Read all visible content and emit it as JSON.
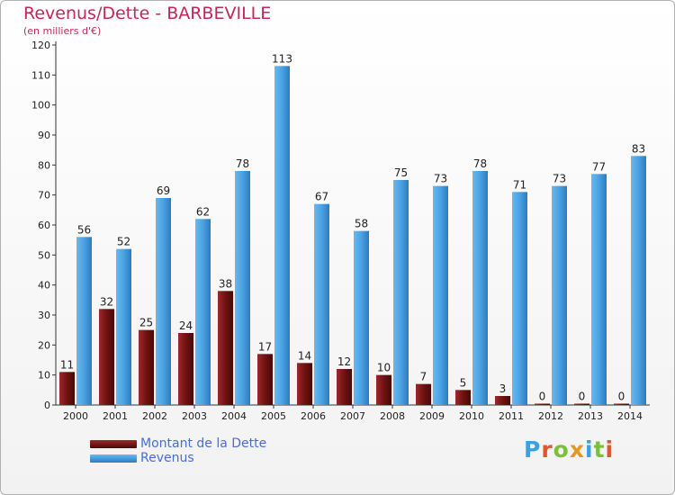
{
  "title": "Revenus/Dette - BARBEVILLE",
  "subtitle": "(en milliers d'€)",
  "brand": "Proxiti",
  "brand_colors": [
    "#3aa0e0",
    "#e0562e",
    "#7bbf3a",
    "#e39a1c",
    "#3aa0e0",
    "#7bbf3a",
    "#e0562e"
  ],
  "chart_data": {
    "type": "bar",
    "categories": [
      "2000",
      "2001",
      "2002",
      "2003",
      "2004",
      "2005",
      "2006",
      "2007",
      "2008",
      "2009",
      "2010",
      "2011",
      "2012",
      "2013",
      "2014"
    ],
    "series": [
      {
        "name": "Montant de la Dette",
        "color": "#7a1414",
        "values": [
          11,
          32,
          25,
          24,
          38,
          17,
          14,
          12,
          10,
          7,
          5,
          3,
          0,
          0,
          0
        ]
      },
      {
        "name": "Revenus",
        "color": "#3f98dc",
        "values": [
          56,
          52,
          69,
          62,
          78,
          113,
          67,
          58,
          75,
          73,
          78,
          71,
          73,
          77,
          83
        ]
      }
    ],
    "ylim": [
      0,
      120
    ],
    "yticks": [
      0,
      10,
      20,
      30,
      40,
      50,
      60,
      70,
      80,
      90,
      100,
      110,
      120
    ],
    "grid": false,
    "legend": "bottom-left"
  }
}
